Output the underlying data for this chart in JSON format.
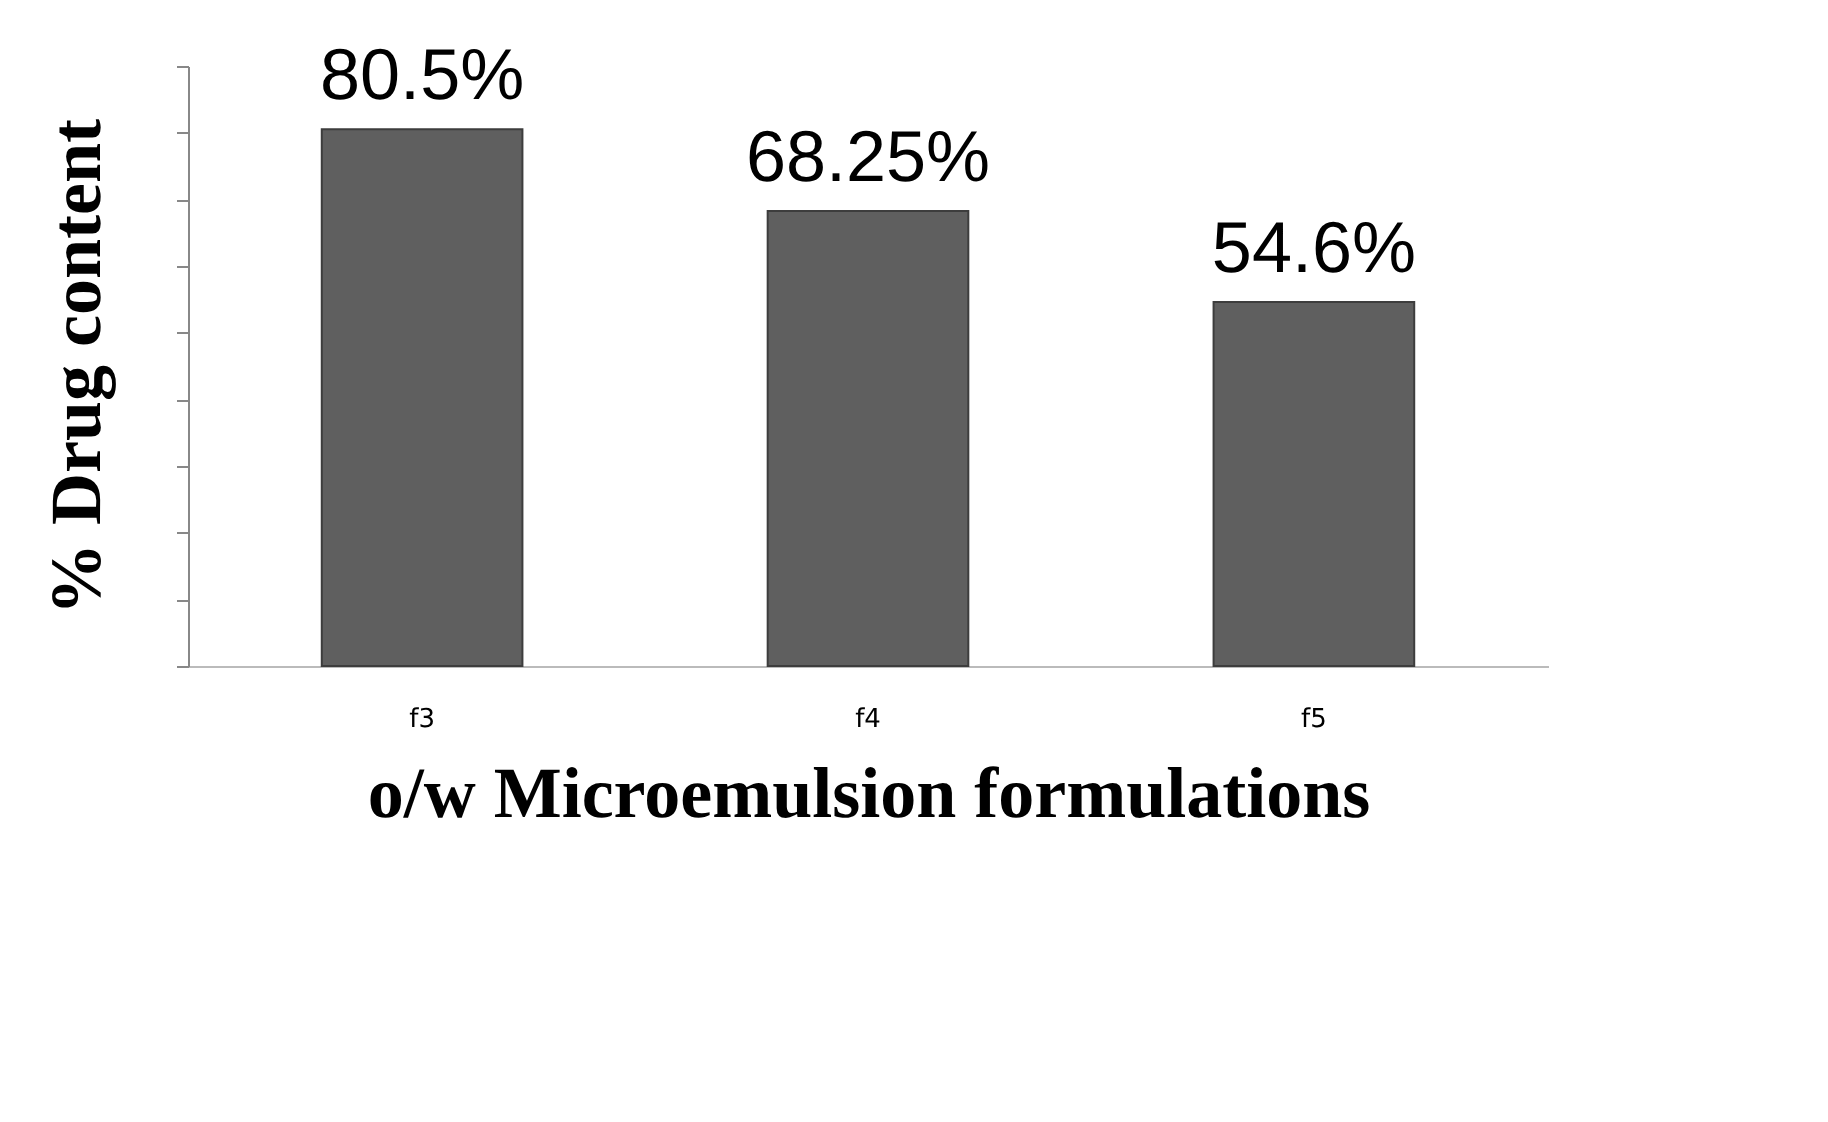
{
  "chart_data": {
    "type": "bar",
    "xlabel": "o/w Microemulsion formulations",
    "ylabel": "% Drug content",
    "categories": [
      "f3",
      "f4",
      "f5"
    ],
    "values": [
      80.5,
      68.25,
      54.6
    ],
    "color": "#5f5f5f",
    "value_labels": [
      "80.5%",
      "68.25%",
      "54.6%"
    ],
    "ylim": [
      0,
      90
    ],
    "tick_labels": "x",
    "grid": false
  }
}
